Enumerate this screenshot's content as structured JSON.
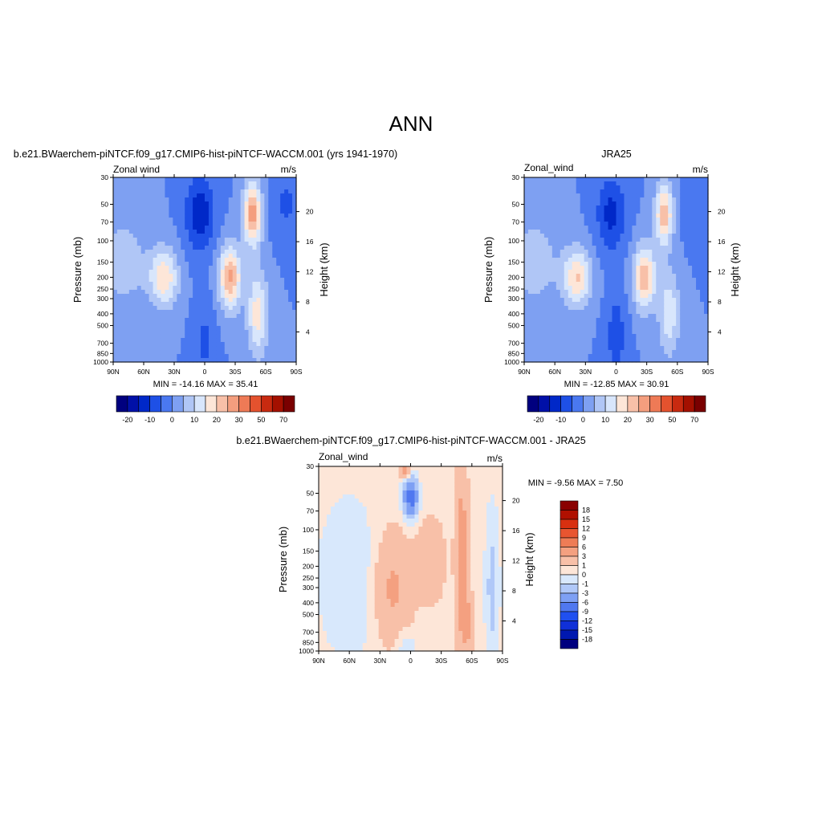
{
  "page": {
    "title": "ANN"
  },
  "colors": {
    "cbar_main": [
      "#00007f",
      "#0010a8",
      "#0028c8",
      "#1e50e6",
      "#4a78f0",
      "#7ea0f2",
      "#b0c6f6",
      "#d8e6fc",
      "#fde6d8",
      "#f8c0a8",
      "#f49e7e",
      "#ee7a56",
      "#e4522e",
      "#c82a10",
      "#a41000",
      "#7a0000"
    ],
    "cbar_diff": [
      "#00007f",
      "#0018b0",
      "#1030d8",
      "#2050f0",
      "#5078f0",
      "#7ea0f4",
      "#b0c8f8",
      "#d8e8fc",
      "#fde6d8",
      "#f8c0a8",
      "#f4a080",
      "#ee7c56",
      "#e85530",
      "#d83010",
      "#b01000",
      "#8a0000"
    ]
  },
  "chart_data": [
    {
      "type": "heatmap",
      "title": "b.e21.BWaerchem-piNTCF.f09_g17.CMIP6-hist-piNTCF-WACCM.001 (yrs 1941-1970)",
      "variable_label": "Zonal wind",
      "units": "m/s",
      "xlabel": "",
      "ylabel": "Pressure (mb)",
      "ylabel_right": "Height (km)",
      "x_ticks": [
        "90N",
        "60N",
        "30N",
        "0",
        "30S",
        "60S",
        "90S"
      ],
      "y_ticks": [
        "30",
        "50",
        "70",
        "100",
        "150",
        "200",
        "250",
        "300",
        "400",
        "500",
        "700",
        "850",
        "1000"
      ],
      "y_ticks_right": [
        "20",
        "16",
        "12",
        "8",
        "4"
      ],
      "stats": "MIN = -14.16  MAX =  35.41",
      "colorbar_labels": [
        "-20",
        "-10",
        "0",
        "10",
        "20",
        "30",
        "50",
        "70"
      ],
      "features": [
        {
          "lat": 80,
          "lev": 150,
          "sx": 24,
          "sy": 0.9,
          "value": 8
        },
        {
          "lat": 40,
          "lev": 200,
          "sx": 14,
          "sy": 0.55,
          "value": 19
        },
        {
          "lat": 5,
          "lev": 60,
          "sx": 14,
          "sy": 0.7,
          "value": -14
        },
        {
          "lat": 0,
          "lev": 700,
          "sx": 10,
          "sy": 0.8,
          "value": -6
        },
        {
          "lat": -25,
          "lev": 200,
          "sx": 11,
          "sy": 0.6,
          "value": 26
        },
        {
          "lat": -47,
          "lev": 60,
          "sx": 9,
          "sy": 0.6,
          "value": 28
        },
        {
          "lat": -52,
          "lev": 400,
          "sx": 10,
          "sy": 0.8,
          "value": 18
        },
        {
          "lat": -80,
          "lev": 50,
          "sx": 14,
          "sy": 0.6,
          "value": -6
        }
      ]
    },
    {
      "type": "heatmap",
      "title": "JRA25",
      "variable_label": "Zonal_wind",
      "units": "m/s",
      "xlabel": "",
      "ylabel": "Pressure (mb)",
      "ylabel_right": "Height (km)",
      "x_ticks": [
        "90N",
        "60N",
        "30N",
        "0",
        "30S",
        "60S",
        "90S"
      ],
      "y_ticks": [
        "30",
        "50",
        "70",
        "100",
        "150",
        "200",
        "250",
        "300",
        "400",
        "500",
        "700",
        "850",
        "1000"
      ],
      "y_ticks_right": [
        "20",
        "16",
        "12",
        "8",
        "4"
      ],
      "stats": "MIN = -12.85  MAX =  30.91",
      "colorbar_labels": [
        "-20",
        "-10",
        "0",
        "10",
        "20",
        "30",
        "50",
        "70"
      ],
      "features": [
        {
          "lat": 80,
          "lev": 150,
          "sx": 24,
          "sy": 0.9,
          "value": 8
        },
        {
          "lat": 38,
          "lev": 200,
          "sx": 14,
          "sy": 0.55,
          "value": 20
        },
        {
          "lat": 5,
          "lev": 60,
          "sx": 14,
          "sy": 0.7,
          "value": -12
        },
        {
          "lat": 0,
          "lev": 600,
          "sx": 10,
          "sy": 0.8,
          "value": -8
        },
        {
          "lat": -28,
          "lev": 200,
          "sx": 11,
          "sy": 0.6,
          "value": 24
        },
        {
          "lat": -47,
          "lev": 60,
          "sx": 9,
          "sy": 0.6,
          "value": 23
        },
        {
          "lat": -52,
          "lev": 400,
          "sx": 10,
          "sy": 0.8,
          "value": 14
        },
        {
          "lat": -80,
          "lev": 50,
          "sx": 14,
          "sy": 0.6,
          "value": -5
        }
      ]
    },
    {
      "type": "heatmap",
      "title": "b.e21.BWaerchem-piNTCF.f09_g17.CMIP6-hist-piNTCF-WACCM.001 - JRA25",
      "variable_label": "Zonal_wind",
      "units": "m/s",
      "xlabel": "",
      "ylabel": "Pressure (mb)",
      "ylabel_right": "Height (km)",
      "x_ticks": [
        "90N",
        "60N",
        "30N",
        "0",
        "30S",
        "60S",
        "90S"
      ],
      "y_ticks": [
        "30",
        "50",
        "70",
        "100",
        "150",
        "200",
        "250",
        "300",
        "400",
        "500",
        "700",
        "850",
        "1000"
      ],
      "y_ticks_right": [
        "20",
        "16",
        "12",
        "8",
        "4"
      ],
      "stats": "MIN =  -9.56  MAX =   7.50",
      "colorbar_labels": [
        "18",
        "15",
        "12",
        "9",
        "6",
        "3",
        "1",
        "0",
        "-1",
        "-3",
        "-6",
        "-9",
        "-12",
        "-15",
        "-18"
      ],
      "background_value": 0.5,
      "features": [
        {
          "lat": 0,
          "lev": 55,
          "sx": 7,
          "sy": 0.35,
          "value": -8
        },
        {
          "lat": 18,
          "lev": 300,
          "sx": 18,
          "sy": 1.0,
          "value": 3
        },
        {
          "lat": -20,
          "lev": 180,
          "sx": 12,
          "sy": 0.7,
          "value": 2.5
        },
        {
          "lat": -50,
          "lev": 150,
          "sx": 6,
          "sy": 1.5,
          "value": 4
        },
        {
          "lat": -55,
          "lev": 600,
          "sx": 6,
          "sy": 0.6,
          "value": 3
        },
        {
          "lat": -80,
          "lev": 300,
          "sx": 7,
          "sy": 1.5,
          "value": -2
        },
        {
          "lat": 60,
          "lev": 250,
          "sx": 30,
          "sy": 1.5,
          "value": -1.5
        },
        {
          "lat": 5,
          "lev": 900,
          "sx": 10,
          "sy": 0.3,
          "value": -1.5
        },
        {
          "lat": 5,
          "lev": 32,
          "sx": 5,
          "sy": 0.15,
          "value": 4
        }
      ]
    }
  ]
}
